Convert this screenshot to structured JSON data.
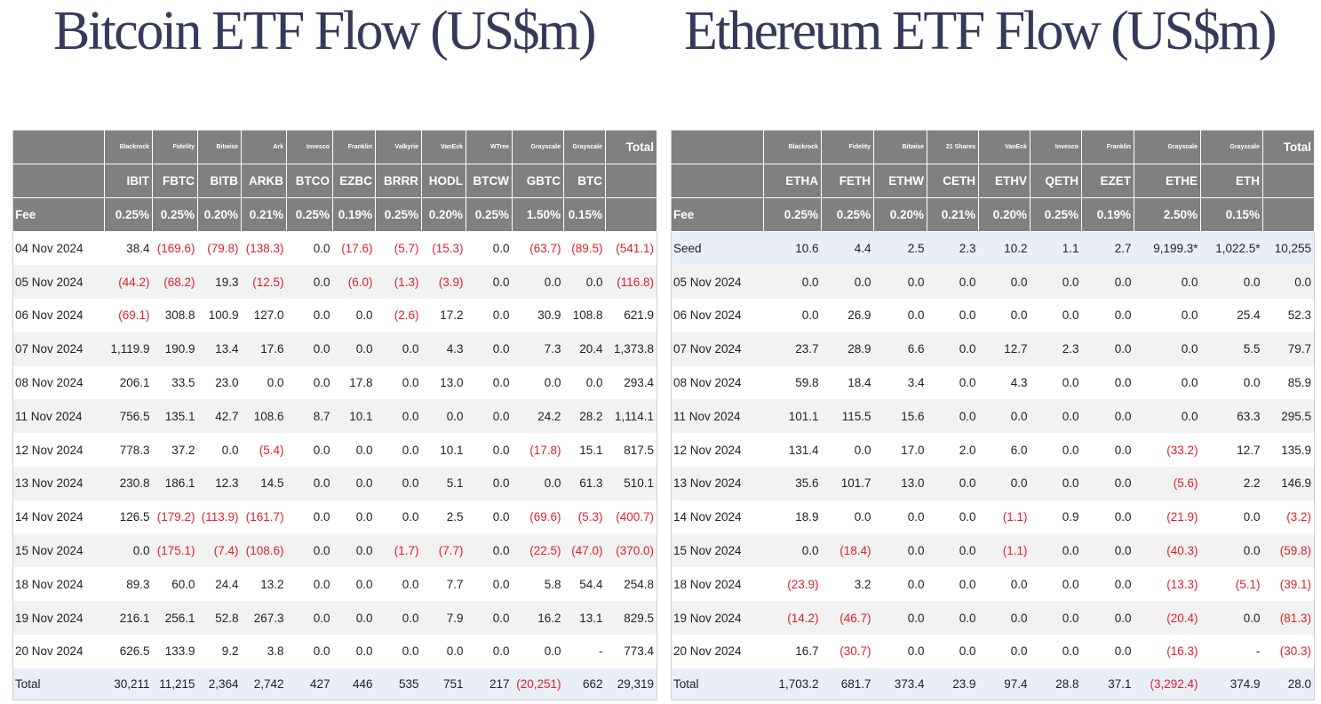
{
  "btc": {
    "title": "Bitcoin ETF Flow (US$m)",
    "issuers": [
      "Blackrock",
      "Fidelity",
      "Bitwise",
      "Ark",
      "Invesco",
      "Franklin",
      "Valkyrie",
      "VanEck",
      "WTree",
      "Grayscale",
      "Grayscale"
    ],
    "total_label": "Total",
    "tickers": [
      "IBIT",
      "FBTC",
      "BITB",
      "ARKB",
      "BTCO",
      "EZBC",
      "BRRR",
      "HODL",
      "BTCW",
      "GBTC",
      "BTC"
    ],
    "fee_label": "Fee",
    "fees": [
      "0.25%",
      "0.25%",
      "0.20%",
      "0.21%",
      "0.25%",
      "0.19%",
      "0.25%",
      "0.20%",
      "0.25%",
      "1.50%",
      "0.15%"
    ],
    "rows": [
      {
        "date": "04 Nov 2024",
        "values": [
          "38.4",
          "(169.6)",
          "(79.8)",
          "(138.3)",
          "0.0",
          "(17.6)",
          "(5.7)",
          "(15.3)",
          "0.0",
          "(63.7)",
          "(89.5)"
        ],
        "total": "(541.1)"
      },
      {
        "date": "05 Nov 2024",
        "values": [
          "(44.2)",
          "(68.2)",
          "19.3",
          "(12.5)",
          "0.0",
          "(6.0)",
          "(1.3)",
          "(3.9)",
          "0.0",
          "0.0",
          "0.0"
        ],
        "total": "(116.8)"
      },
      {
        "date": "06 Nov 2024",
        "values": [
          "(69.1)",
          "308.8",
          "100.9",
          "127.0",
          "0.0",
          "0.0",
          "(2.6)",
          "17.2",
          "0.0",
          "30.9",
          "108.8"
        ],
        "total": "621.9"
      },
      {
        "date": "07 Nov 2024",
        "values": [
          "1,119.9",
          "190.9",
          "13.4",
          "17.6",
          "0.0",
          "0.0",
          "0.0",
          "4.3",
          "0.0",
          "7.3",
          "20.4"
        ],
        "total": "1,373.8"
      },
      {
        "date": "08 Nov 2024",
        "values": [
          "206.1",
          "33.5",
          "23.0",
          "0.0",
          "0.0",
          "17.8",
          "0.0",
          "13.0",
          "0.0",
          "0.0",
          "0.0"
        ],
        "total": "293.4"
      },
      {
        "date": "11 Nov 2024",
        "values": [
          "756.5",
          "135.1",
          "42.7",
          "108.6",
          "8.7",
          "10.1",
          "0.0",
          "0.0",
          "0.0",
          "24.2",
          "28.2"
        ],
        "total": "1,114.1"
      },
      {
        "date": "12 Nov 2024",
        "values": [
          "778.3",
          "37.2",
          "0.0",
          "(5.4)",
          "0.0",
          "0.0",
          "0.0",
          "10.1",
          "0.0",
          "(17.8)",
          "15.1"
        ],
        "total": "817.5"
      },
      {
        "date": "13 Nov 2024",
        "values": [
          "230.8",
          "186.1",
          "12.3",
          "14.5",
          "0.0",
          "0.0",
          "0.0",
          "5.1",
          "0.0",
          "0.0",
          "61.3"
        ],
        "total": "510.1"
      },
      {
        "date": "14 Nov 2024",
        "values": [
          "126.5",
          "(179.2)",
          "(113.9)",
          "(161.7)",
          "0.0",
          "0.0",
          "0.0",
          "2.5",
          "0.0",
          "(69.6)",
          "(5.3)"
        ],
        "total": "(400.7)"
      },
      {
        "date": "15 Nov 2024",
        "values": [
          "0.0",
          "(175.1)",
          "(7.4)",
          "(108.6)",
          "0.0",
          "0.0",
          "(1.7)",
          "(7.7)",
          "0.0",
          "(22.5)",
          "(47.0)"
        ],
        "total": "(370.0)"
      },
      {
        "date": "18 Nov 2024",
        "values": [
          "89.3",
          "60.0",
          "24.4",
          "13.2",
          "0.0",
          "0.0",
          "0.0",
          "7.7",
          "0.0",
          "5.8",
          "54.4"
        ],
        "total": "254.8"
      },
      {
        "date": "19 Nov 2024",
        "values": [
          "216.1",
          "256.1",
          "52.8",
          "267.3",
          "0.0",
          "0.0",
          "0.0",
          "7.9",
          "0.0",
          "16.2",
          "13.1"
        ],
        "total": "829.5"
      },
      {
        "date": "20 Nov 2024",
        "values": [
          "626.5",
          "133.9",
          "9.2",
          "3.8",
          "0.0",
          "0.0",
          "0.0",
          "0.0",
          "0.0",
          "0.0",
          "-"
        ],
        "total": "773.4"
      }
    ],
    "footer": {
      "label": "Total",
      "values": [
        "30,211",
        "11,215",
        "2,364",
        "2,742",
        "427",
        "446",
        "535",
        "751",
        "217",
        "(20,251)",
        "662"
      ],
      "total": "29,319"
    }
  },
  "eth": {
    "title": "Ethereum ETF Flow (US$m)",
    "issuers": [
      "Blackrock",
      "Fidelity",
      "Bitwise",
      "21 Shares",
      "VanEck",
      "Invesco",
      "Franklin",
      "Grayscale",
      "Grayscale"
    ],
    "total_label": "Total",
    "tickers": [
      "ETHA",
      "FETH",
      "ETHW",
      "CETH",
      "ETHV",
      "QETH",
      "EZET",
      "ETHE",
      "ETH"
    ],
    "fee_label": "Fee",
    "fees": [
      "0.25%",
      "0.25%",
      "0.20%",
      "0.21%",
      "0.20%",
      "0.25%",
      "0.19%",
      "2.50%",
      "0.15%"
    ],
    "rows": [
      {
        "date": "Seed",
        "values": [
          "10.6",
          "4.4",
          "2.5",
          "2.3",
          "10.2",
          "1.1",
          "2.7",
          "9,199.3*",
          "1,022.5*"
        ],
        "total": "10,255"
      },
      {
        "date": "05 Nov 2024",
        "values": [
          "0.0",
          "0.0",
          "0.0",
          "0.0",
          "0.0",
          "0.0",
          "0.0",
          "0.0",
          "0.0"
        ],
        "total": "0.0"
      },
      {
        "date": "06 Nov 2024",
        "values": [
          "0.0",
          "26.9",
          "0.0",
          "0.0",
          "0.0",
          "0.0",
          "0.0",
          "0.0",
          "25.4"
        ],
        "total": "52.3"
      },
      {
        "date": "07 Nov 2024",
        "values": [
          "23.7",
          "28.9",
          "6.6",
          "0.0",
          "12.7",
          "2.3",
          "0.0",
          "0.0",
          "5.5"
        ],
        "total": "79.7"
      },
      {
        "date": "08 Nov 2024",
        "values": [
          "59.8",
          "18.4",
          "3.4",
          "0.0",
          "4.3",
          "0.0",
          "0.0",
          "0.0",
          "0.0"
        ],
        "total": "85.9"
      },
      {
        "date": "11 Nov 2024",
        "values": [
          "101.1",
          "115.5",
          "15.6",
          "0.0",
          "0.0",
          "0.0",
          "0.0",
          "0.0",
          "63.3"
        ],
        "total": "295.5"
      },
      {
        "date": "12 Nov 2024",
        "values": [
          "131.4",
          "0.0",
          "17.0",
          "2.0",
          "6.0",
          "0.0",
          "0.0",
          "(33.2)",
          "12.7"
        ],
        "total": "135.9"
      },
      {
        "date": "13 Nov 2024",
        "values": [
          "35.6",
          "101.7",
          "13.0",
          "0.0",
          "0.0",
          "0.0",
          "0.0",
          "(5.6)",
          "2.2"
        ],
        "total": "146.9"
      },
      {
        "date": "14 Nov 2024",
        "values": [
          "18.9",
          "0.0",
          "0.0",
          "0.0",
          "(1.1)",
          "0.9",
          "0.0",
          "(21.9)",
          "0.0"
        ],
        "total": "(3.2)"
      },
      {
        "date": "15 Nov 2024",
        "values": [
          "0.0",
          "(18.4)",
          "0.0",
          "0.0",
          "(1.1)",
          "0.0",
          "0.0",
          "(40.3)",
          "0.0"
        ],
        "total": "(59.8)"
      },
      {
        "date": "18 Nov 2024",
        "values": [
          "(23.9)",
          "3.2",
          "0.0",
          "0.0",
          "0.0",
          "0.0",
          "0.0",
          "(13.3)",
          "(5.1)"
        ],
        "total": "(39.1)"
      },
      {
        "date": "19 Nov 2024",
        "values": [
          "(14.2)",
          "(46.7)",
          "0.0",
          "0.0",
          "0.0",
          "0.0",
          "0.0",
          "(20.4)",
          "0.0"
        ],
        "total": "(81.3)"
      },
      {
        "date": "20 Nov 2024",
        "values": [
          "16.7",
          "(30.7)",
          "0.0",
          "0.0",
          "0.0",
          "0.0",
          "0.0",
          "(16.3)",
          "-"
        ],
        "total": "(30.3)"
      }
    ],
    "footer": {
      "label": "Total",
      "values": [
        "1,703.2",
        "681.7",
        "373.4",
        "23.9",
        "97.4",
        "28.8",
        "37.1",
        "(3,292.4)",
        "374.9"
      ],
      "total": "28.0"
    }
  },
  "colors": {
    "header_bg": "#808080",
    "negative": "#e0202a",
    "title": "#363a5a",
    "row_alt": "#f2f2f2",
    "highlight": "#e9eef7"
  }
}
